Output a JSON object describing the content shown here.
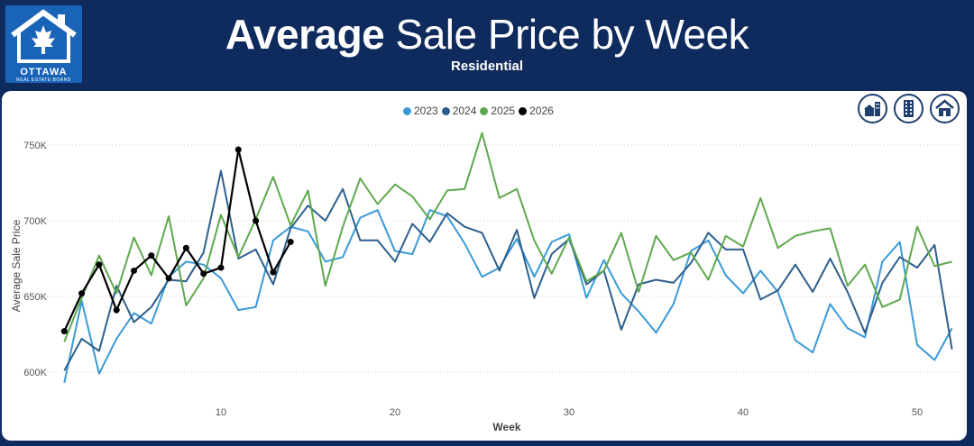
{
  "header": {
    "title_bold": "Average",
    "title_rest": "Sale Price by Week",
    "subtitle": "Residential",
    "logo_name": "OTTAWA",
    "logo_sub": "REAL ESTATE BOARD"
  },
  "icons": [
    "detached-home-icon",
    "condo-tower-icon",
    "residential-home-icon"
  ],
  "colors": {
    "background": "#0f2a5c",
    "s2023": "#3a9ad6",
    "s2024": "#2d5f8e",
    "s2025": "#5fa84d",
    "s2026": "#000000"
  },
  "chart_data": {
    "type": "line",
    "title": "Average Sale Price by Week",
    "subtitle": "Residential",
    "xlabel": "Week",
    "ylabel": "Average Sale Price",
    "xlim": [
      1,
      52
    ],
    "ylim": [
      590000,
      765000
    ],
    "xticks": [
      10,
      20,
      30,
      40,
      50
    ],
    "yticks": [
      600000,
      650000,
      700000,
      750000
    ],
    "ytick_labels": [
      "600K",
      "650K",
      "700K",
      "750K"
    ],
    "grid": "horizontal dotted",
    "legend": "top-center",
    "series": [
      {
        "name": "2023",
        "color": "#3a9ad6",
        "markers": false,
        "x": [
          1,
          2,
          3,
          4,
          5,
          6,
          7,
          8,
          9,
          10,
          11,
          12,
          13,
          14,
          15,
          16,
          17,
          18,
          19,
          20,
          21,
          22,
          23,
          24,
          25,
          26,
          27,
          28,
          29,
          30,
          31,
          32,
          33,
          34,
          35,
          36,
          37,
          38,
          39,
          40,
          41,
          42,
          43,
          44,
          45,
          46,
          47,
          48,
          49,
          50,
          51,
          52
        ],
        "values": [
          593000,
          647000,
          599000,
          622000,
          639000,
          632000,
          663000,
          673000,
          671000,
          662000,
          641000,
          643000,
          687000,
          696000,
          693000,
          673000,
          676000,
          702000,
          707000,
          680000,
          678000,
          707000,
          703000,
          685000,
          663000,
          669000,
          688000,
          663000,
          686000,
          691000,
          649000,
          674000,
          652000,
          640000,
          626000,
          645000,
          680000,
          687000,
          664000,
          652000,
          667000,
          653000,
          621000,
          613000,
          645000,
          629000,
          623000,
          673000,
          686000,
          618000,
          608000,
          629000
        ]
      },
      {
        "name": "2024",
        "color": "#2d5f8e",
        "markers": false,
        "x": [
          1,
          2,
          3,
          4,
          5,
          6,
          7,
          8,
          9,
          10,
          11,
          12,
          13,
          14,
          15,
          16,
          17,
          18,
          19,
          20,
          21,
          22,
          23,
          24,
          25,
          26,
          27,
          28,
          29,
          30,
          31,
          32,
          33,
          34,
          35,
          36,
          37,
          38,
          39,
          40,
          41,
          42,
          43,
          44,
          45,
          46,
          47,
          48,
          49,
          50,
          51,
          52
        ],
        "values": [
          601000,
          622000,
          614000,
          657000,
          633000,
          643000,
          661000,
          660000,
          679000,
          733000,
          675000,
          681000,
          658000,
          695000,
          710000,
          700000,
          721000,
          687000,
          687000,
          673000,
          698000,
          686000,
          705000,
          696000,
          692000,
          667000,
          694000,
          649000,
          678000,
          688000,
          658000,
          667000,
          628000,
          658000,
          661000,
          659000,
          672000,
          692000,
          681000,
          681000,
          648000,
          654000,
          671000,
          653000,
          675000,
          653000,
          626000,
          659000,
          676000,
          669000,
          684000,
          615000
        ]
      },
      {
        "name": "2025",
        "color": "#5fa84d",
        "markers": false,
        "x": [
          1,
          2,
          3,
          4,
          5,
          6,
          7,
          8,
          9,
          10,
          11,
          12,
          13,
          14,
          15,
          16,
          17,
          18,
          19,
          20,
          21,
          22,
          23,
          24,
          25,
          26,
          27,
          28,
          29,
          30,
          31,
          32,
          33,
          34,
          35,
          36,
          37,
          38,
          39,
          40,
          41,
          42,
          43,
          44,
          45,
          46,
          47,
          48,
          49,
          50,
          51,
          52
        ],
        "values": [
          620000,
          649000,
          677000,
          652000,
          689000,
          664000,
          703000,
          644000,
          662000,
          704000,
          676000,
          701000,
          729000,
          697000,
          720000,
          657000,
          696000,
          728000,
          711000,
          724000,
          716000,
          701000,
          720000,
          721000,
          758000,
          715000,
          721000,
          687000,
          665000,
          689000,
          660000,
          667000,
          692000,
          653000,
          690000,
          674000,
          679000,
          661000,
          690000,
          683000,
          715000,
          682000,
          690000,
          693000,
          695000,
          657000,
          671000,
          643000,
          648000,
          696000,
          670000,
          673000
        ]
      },
      {
        "name": "2026",
        "color": "#000000",
        "markers": true,
        "x": [
          1,
          2,
          3,
          4,
          5,
          6,
          7,
          8,
          9,
          10,
          11,
          12,
          13,
          14
        ],
        "values": [
          627000,
          652000,
          671000,
          641000,
          667000,
          677000,
          662000,
          682000,
          665000,
          669000,
          747000,
          700000,
          666000,
          686000
        ]
      }
    ]
  }
}
